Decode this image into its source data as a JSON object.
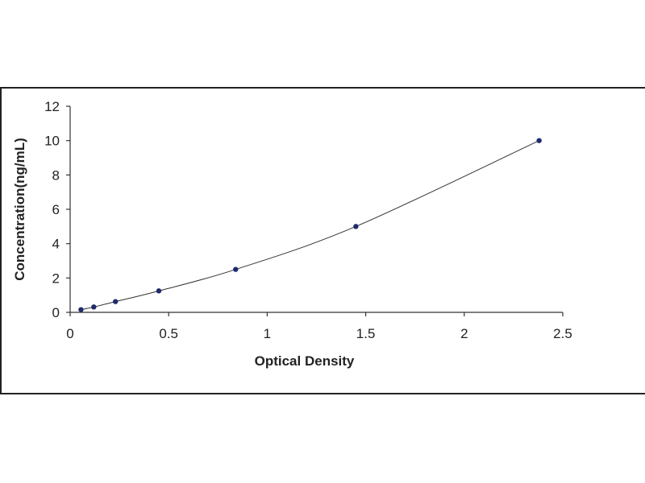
{
  "chart_data": {
    "type": "scatter",
    "title": "",
    "xlabel": "Optical Density",
    "ylabel": "Concentration(ng/mL)",
    "xlim": [
      0,
      2.5
    ],
    "ylim": [
      0,
      12
    ],
    "xticks": [
      0,
      0.5,
      1,
      1.5,
      2,
      2.5
    ],
    "xtick_labels": [
      "0",
      "0.5",
      "1",
      "1.5",
      "2",
      "2.5"
    ],
    "yticks": [
      0,
      2,
      4,
      6,
      8,
      10,
      12
    ],
    "ytick_labels": [
      "0",
      "2",
      "4",
      "6",
      "8",
      "10",
      "12"
    ],
    "grid": false,
    "legend": "none",
    "series": [
      {
        "points": [
          {
            "x": 0.055,
            "y": 0.156
          },
          {
            "x": 0.12,
            "y": 0.312
          },
          {
            "x": 0.23,
            "y": 0.625
          },
          {
            "x": 0.45,
            "y": 1.25
          },
          {
            "x": 0.84,
            "y": 2.5
          },
          {
            "x": 1.45,
            "y": 5
          },
          {
            "x": 2.38,
            "y": 10
          }
        ],
        "marker_color": "#1f2a6b",
        "line_color": "#333333",
        "fit": "smooth"
      }
    ]
  }
}
